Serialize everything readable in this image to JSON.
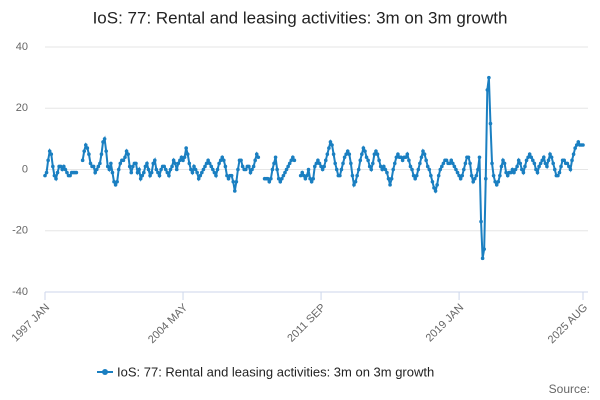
{
  "chart_data": {
    "type": "line",
    "title": "IoS: 77: Rental and leasing activities: 3m on 3m growth",
    "source_label": "Source:",
    "categories": [
      "1997 JAN",
      null,
      null,
      null,
      null,
      null,
      null,
      null,
      null,
      null,
      null,
      null,
      null,
      null,
      null,
      null,
      null,
      null,
      null,
      null,
      null,
      null,
      null,
      null,
      null,
      null,
      null,
      null,
      null,
      null,
      null,
      null,
      null,
      null,
      null,
      null,
      null,
      null,
      null,
      null,
      null,
      null,
      null,
      null,
      null,
      null,
      null,
      null,
      null,
      null,
      null,
      null,
      null,
      null,
      null,
      null,
      null,
      null,
      null,
      null,
      null,
      null,
      null,
      null,
      null,
      null,
      null,
      null,
      null,
      null,
      null,
      null,
      null,
      null,
      null,
      null,
      null,
      null,
      null,
      null,
      null,
      null,
      null,
      null,
      null,
      null,
      null,
      null,
      "2004 MAY",
      null,
      null,
      null,
      null,
      null,
      null,
      null,
      null,
      null,
      null,
      null,
      null,
      null,
      null,
      null,
      null,
      null,
      null,
      null,
      null,
      null,
      null,
      null,
      null,
      null,
      null,
      null,
      null,
      null,
      null,
      null,
      null,
      null,
      null,
      null,
      null,
      null,
      null,
      null,
      null,
      null,
      null,
      null,
      null,
      null,
      null,
      null,
      null,
      null,
      null,
      null,
      null,
      null,
      null,
      null,
      null,
      null,
      null,
      null,
      null,
      null,
      null,
      null,
      null,
      null,
      null,
      null,
      null,
      null,
      null,
      null,
      null,
      null,
      null,
      null,
      null,
      null,
      null,
      null,
      null,
      null,
      null,
      null,
      null,
      null,
      null,
      null,
      "2011 SEP",
      null,
      null,
      null,
      null,
      null,
      null,
      null,
      null,
      null,
      null,
      null,
      null,
      null,
      null,
      null,
      null,
      null,
      null,
      null,
      null,
      null,
      null,
      null,
      null,
      null,
      null,
      null,
      null,
      null,
      null,
      null,
      null,
      null,
      null,
      null,
      null,
      null,
      null,
      null,
      null,
      null,
      null,
      null,
      null,
      null,
      null,
      null,
      null,
      null,
      null,
      null,
      null,
      null,
      null,
      null,
      null,
      null,
      null,
      null,
      null,
      null,
      null,
      null,
      null,
      null,
      null,
      null,
      null,
      null,
      null,
      null,
      null,
      null,
      null,
      null,
      null,
      null,
      null,
      null,
      null,
      null,
      null,
      null,
      null,
      null,
      null,
      null,
      "2019 JAN",
      null,
      null,
      null,
      null,
      null,
      null,
      null,
      null,
      null,
      null,
      null,
      null,
      null,
      null,
      null,
      null,
      null,
      null,
      null,
      null,
      null,
      null,
      null,
      null,
      null,
      null,
      null,
      null,
      null,
      null,
      null,
      null,
      null,
      null,
      null,
      null,
      null,
      null,
      null,
      null,
      null,
      null,
      null,
      null,
      null,
      null,
      null,
      null,
      null,
      null,
      null,
      null,
      null,
      null,
      null,
      null,
      null,
      null,
      null,
      null,
      null,
      null,
      null,
      null,
      null,
      null,
      null,
      null,
      null,
      null,
      null,
      null,
      null,
      null,
      null,
      null,
      null,
      null,
      "2025 AUG"
    ],
    "series": [
      {
        "name": "IoS: 77: Rental and leasing activities: 3m on 3m growth",
        "color": "#1a7fc1",
        "values": [
          -2,
          -1,
          3,
          6,
          5,
          1,
          -2,
          -3,
          -1,
          1,
          1,
          0,
          1,
          0,
          -1,
          -2,
          -2,
          -1,
          -1,
          -1,
          -1,
          null,
          null,
          null,
          3,
          6,
          8,
          7,
          5,
          2,
          1,
          1,
          -1,
          0,
          1,
          2,
          5,
          9,
          10,
          6,
          1,
          0,
          2,
          -1,
          -4,
          -5,
          -4,
          0,
          2,
          3,
          3,
          4,
          6,
          5,
          1,
          -1,
          1,
          2,
          2,
          -1,
          0,
          -3,
          -2,
          -1,
          1,
          2,
          0,
          -2,
          -1,
          2,
          3,
          0,
          -1,
          -2,
          0,
          1,
          1,
          0,
          -1,
          -2,
          0,
          1,
          3,
          2,
          0,
          2,
          3,
          4,
          3,
          4,
          7,
          5,
          2,
          0,
          -1,
          1,
          0,
          -1,
          -3,
          -2,
          -1,
          0,
          1,
          2,
          3,
          2,
          1,
          0,
          -1,
          -2,
          0,
          2,
          3,
          4,
          3,
          1,
          -2,
          -3,
          -2,
          -2,
          -4,
          -7,
          -4,
          0,
          3,
          3,
          1,
          0,
          0,
          1,
          1,
          -1,
          0,
          1,
          3,
          5,
          4,
          null,
          null,
          null,
          -3,
          -3,
          -3,
          -4,
          -3,
          0,
          2,
          4,
          0,
          -3,
          -4,
          -3,
          -2,
          -1,
          0,
          1,
          2,
          3,
          4,
          3,
          null,
          null,
          null,
          -2,
          -1,
          -2,
          -3,
          -2,
          0,
          -3,
          -4,
          -3,
          1,
          2,
          3,
          2,
          1,
          0,
          1,
          3,
          5,
          7,
          9,
          8,
          5,
          2,
          0,
          -2,
          -2,
          0,
          2,
          4,
          5,
          6,
          5,
          2,
          -2,
          -5,
          -4,
          -2,
          0,
          3,
          5,
          7,
          6,
          4,
          3,
          1,
          0,
          2,
          5,
          6,
          5,
          3,
          1,
          0,
          1,
          0,
          -1,
          -3,
          -5,
          -3,
          0,
          2,
          4,
          5,
          4,
          4,
          3,
          4,
          4,
          5,
          3,
          1,
          0,
          -2,
          -3,
          -2,
          0,
          2,
          4,
          6,
          5,
          3,
          1,
          0,
          -2,
          -4,
          -6,
          -7,
          -5,
          -2,
          0,
          1,
          2,
          3,
          3,
          2,
          2,
          3,
          2,
          1,
          0,
          -1,
          -2,
          -3,
          -2,
          0,
          2,
          4,
          4,
          2,
          -2,
          -4,
          -3,
          -2,
          0,
          4,
          -17,
          -29,
          -26,
          -3,
          26,
          30,
          15,
          2,
          -2,
          -4,
          -5,
          -4,
          -2,
          1,
          3,
          2,
          -1,
          -2,
          -1,
          -1,
          0,
          -1,
          0,
          1,
          3,
          2,
          0,
          -1,
          1,
          3,
          4,
          5,
          4,
          3,
          2,
          0,
          -1,
          1,
          2,
          3,
          4,
          2,
          1,
          3,
          5,
          4,
          2,
          0,
          -2,
          -2,
          -1,
          1,
          3,
          3,
          2,
          2,
          1,
          0,
          3,
          5,
          7,
          8,
          9,
          8,
          8,
          8
        ]
      }
    ],
    "ylim": [
      -40,
      40
    ],
    "yticks": [
      -40,
      -20,
      0,
      20,
      40
    ],
    "grid": true
  }
}
